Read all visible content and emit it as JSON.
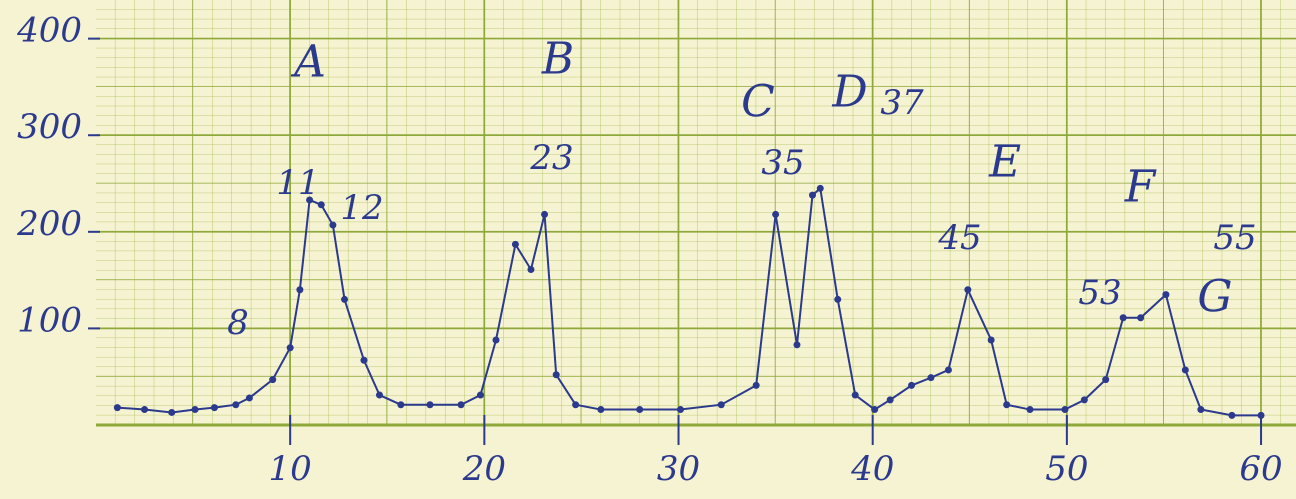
{
  "chart_data": {
    "type": "line",
    "x": [
      1.1,
      2.5,
      3.9,
      5.1,
      6.1,
      7.2,
      7.9,
      9.1,
      10,
      10.5,
      11,
      11.6,
      12.2,
      12.8,
      13.8,
      14.6,
      15.7,
      17.2,
      18.8,
      19.8,
      20.6,
      21.6,
      22.4,
      23.1,
      23.7,
      24.7,
      26,
      28,
      30.1,
      32.2,
      34,
      35,
      36.1,
      36.9,
      37.3,
      38.2,
      39.1,
      40.1,
      40.9,
      42,
      43,
      43.9,
      44.9,
      46.1,
      46.9,
      48.1,
      49.9,
      50.9,
      52,
      52.9,
      53.8,
      55.1,
      56.1,
      56.9,
      58.5,
      60
    ],
    "series": [
      {
        "color": "#2b3a8c",
        "values": [
          18,
          16,
          13,
          16,
          18,
          21,
          28,
          47,
          80,
          140,
          233,
          228,
          207,
          130,
          67,
          31,
          21,
          21,
          21,
          31,
          88,
          187,
          161,
          218,
          52,
          21,
          16,
          16,
          16,
          21,
          41,
          218,
          83,
          238,
          245,
          130,
          31,
          16,
          26,
          41,
          49,
          57,
          140,
          88,
          21,
          16,
          16,
          26,
          47,
          111,
          111,
          135,
          57,
          16,
          10,
          10
        ]
      }
    ],
    "xlim": [
      0,
      61.8
    ],
    "ylim": [
      0,
      440
    ],
    "xticks": [
      10,
      20,
      30,
      40,
      50,
      60
    ],
    "yticks": [
      100,
      200,
      300,
      400
    ],
    "grid": true,
    "annotations": [
      "A",
      "B",
      "C",
      "D",
      "E",
      "F",
      "G",
      "8",
      "11",
      "12",
      "23",
      "35",
      "37",
      "45",
      "53",
      "55"
    ]
  }
}
